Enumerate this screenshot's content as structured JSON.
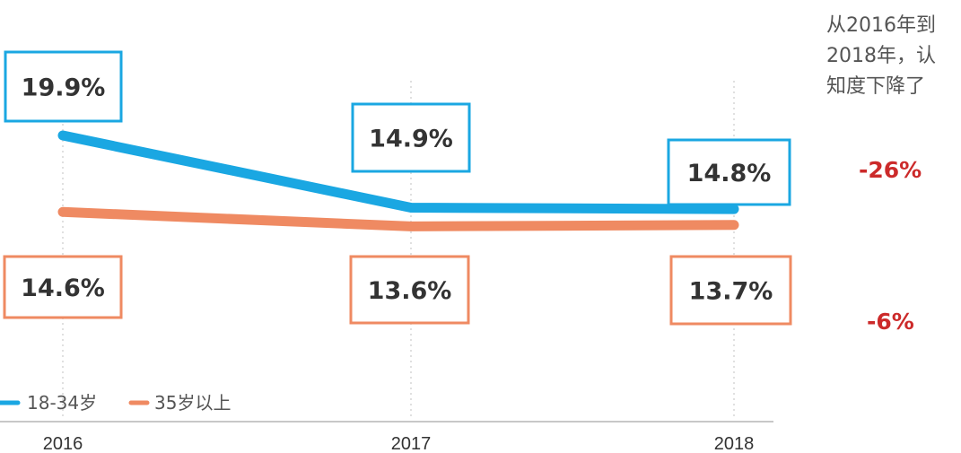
{
  "chart_data": {
    "type": "line",
    "categories": [
      "2016",
      "2017",
      "2018"
    ],
    "series": [
      {
        "name": "18-34岁",
        "values": [
          19.9,
          14.9,
          14.8
        ],
        "labels": [
          "19.9%",
          "14.9%",
          "14.8%"
        ],
        "color": "#1aa7e2"
      },
      {
        "name": "35岁以上",
        "values": [
          14.6,
          13.6,
          13.7
        ],
        "labels": [
          "14.6%",
          "13.6%",
          "13.7%"
        ],
        "color": "#ef8a62"
      }
    ],
    "grid": "vertical-dotted",
    "legend": "bottom-left"
  },
  "side_note": {
    "lines": [
      "从2016年到",
      "2018年，认",
      "知度下降了"
    ],
    "changes": [
      {
        "text": "-26%",
        "series": "18-34岁"
      },
      {
        "text": "-6%",
        "series": "35岁以上"
      }
    ],
    "color": "#cc2a2a"
  }
}
